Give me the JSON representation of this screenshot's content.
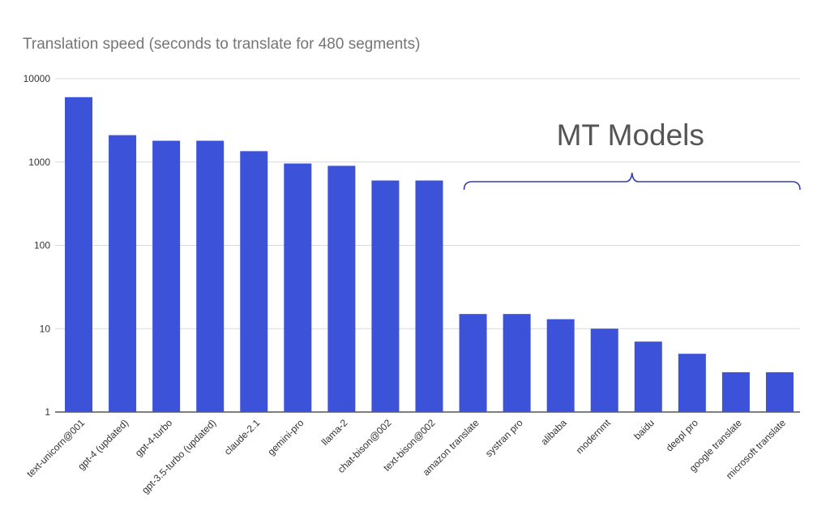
{
  "chart_data": {
    "type": "bar",
    "title": "Translation speed (seconds to translate for 480 segments)",
    "xlabel": "",
    "ylabel": "",
    "yscale": "log",
    "ylim": [
      1,
      10000
    ],
    "yticks": [
      "1",
      "10",
      "100",
      "1000",
      "10000"
    ],
    "grid": true,
    "legend": "none",
    "categories": [
      "text-unicorn@001",
      "gpt-4 (updated)",
      "gpt-4-turbo",
      "gpt-3.5-turbo (updated)",
      "claude-2.1",
      "gemini-pro",
      "llama-2",
      "chat-bison@002",
      "text-bison@002",
      "amazon translate",
      "systran pro",
      "alibaba",
      "modernmt",
      "baidu",
      "deepl pro",
      "google translate",
      "microsoft translate"
    ],
    "values": [
      6000,
      2100,
      1800,
      1800,
      1350,
      960,
      900,
      600,
      600,
      15,
      15,
      13,
      10,
      7,
      5,
      3,
      3
    ],
    "bar_color": "#3c52d9",
    "annotation": {
      "text": "MT Models",
      "from_category": "amazon translate",
      "to_category": "microsoft translate",
      "color": "#3a3fa8"
    }
  }
}
